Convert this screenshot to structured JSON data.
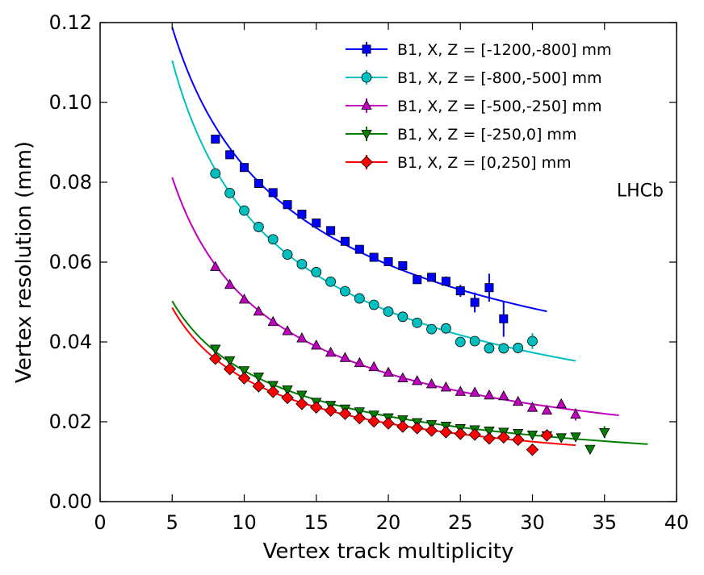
{
  "chart_data": {
    "type": "scatter",
    "title": "",
    "xlabel": "Vertex track multiplicity",
    "ylabel": "Vertex resolution (mm)",
    "xlim": [
      0,
      40
    ],
    "ylim": [
      0.0,
      0.12
    ],
    "x_ticks": [
      0,
      5,
      10,
      15,
      20,
      25,
      30,
      35,
      40
    ],
    "y_ticks": [
      0.0,
      0.02,
      0.04,
      0.06,
      0.08,
      0.1,
      0.12
    ],
    "x_tick_labels": [
      "0",
      "5",
      "10",
      "15",
      "20",
      "25",
      "30",
      "35",
      "40"
    ],
    "y_tick_labels": [
      "0.00",
      "0.02",
      "0.04",
      "0.06",
      "0.08",
      "0.10",
      "0.12"
    ],
    "grid": false,
    "legend_position": "top-right",
    "annotation": "LHCb",
    "series": [
      {
        "name": "B1, X, Z = [-1200,-800] mm",
        "color": "#0000ff",
        "marker": "square",
        "fit_x_range": [
          5,
          31
        ],
        "x": [
          8,
          9,
          10,
          11,
          12,
          13,
          14,
          15,
          16,
          17,
          18,
          19,
          20,
          21,
          22,
          23,
          24,
          25,
          26,
          27,
          28
        ],
        "y": [
          0.0908,
          0.0869,
          0.0837,
          0.0797,
          0.0774,
          0.0744,
          0.072,
          0.0698,
          0.0679,
          0.0652,
          0.0632,
          0.0612,
          0.0601,
          0.0591,
          0.0556,
          0.0562,
          0.0552,
          0.0528,
          0.0499,
          0.0536,
          0.0458
        ],
        "yerr": [
          0.001,
          0.0008,
          0.0007,
          0.0007,
          0.0007,
          0.0007,
          0.0007,
          0.0007,
          0.0007,
          0.0007,
          0.0007,
          0.0007,
          0.0007,
          0.0008,
          0.0009,
          0.001,
          0.0012,
          0.0015,
          0.0025,
          0.0035,
          0.0045
        ]
      },
      {
        "name": "B1, X, Z = [-800,-500] mm",
        "color": "#00bfbf",
        "marker": "circle",
        "fit_x_range": [
          5,
          33
        ],
        "x": [
          8,
          9,
          10,
          11,
          12,
          13,
          14,
          15,
          16,
          17,
          18,
          19,
          20,
          21,
          22,
          23,
          24,
          25,
          26,
          27,
          28,
          29,
          30
        ],
        "y": [
          0.0822,
          0.0773,
          0.0729,
          0.0688,
          0.0657,
          0.0619,
          0.0595,
          0.0575,
          0.0551,
          0.0527,
          0.0509,
          0.0493,
          0.0476,
          0.0463,
          0.0448,
          0.0432,
          0.0434,
          0.04,
          0.0402,
          0.0384,
          0.0384,
          0.0385,
          0.0402
        ],
        "yerr": [
          0.0007,
          0.0006,
          0.0005,
          0.0005,
          0.0005,
          0.0005,
          0.0005,
          0.0005,
          0.0005,
          0.0005,
          0.0005,
          0.0005,
          0.0005,
          0.0005,
          0.0005,
          0.0005,
          0.0006,
          0.0006,
          0.0007,
          0.0008,
          0.001,
          0.0013,
          0.002
        ]
      },
      {
        "name": "B1, X, Z = [-500,-250] mm",
        "color": "#bf00bf",
        "marker": "triangle-up",
        "fit_x_range": [
          5,
          36
        ],
        "x": [
          8,
          9,
          10,
          11,
          12,
          13,
          14,
          15,
          16,
          17,
          18,
          19,
          20,
          21,
          22,
          23,
          24,
          25,
          26,
          27,
          28,
          29,
          30,
          31,
          32,
          33
        ],
        "y": [
          0.0588,
          0.0543,
          0.0506,
          0.0476,
          0.045,
          0.0427,
          0.0409,
          0.0391,
          0.0373,
          0.036,
          0.0347,
          0.0337,
          0.0323,
          0.0309,
          0.0302,
          0.0294,
          0.0286,
          0.0275,
          0.0273,
          0.0266,
          0.0264,
          0.025,
          0.0235,
          0.0228,
          0.0244,
          0.0218
        ],
        "yerr": [
          0.0005,
          0.0005,
          0.0004,
          0.0004,
          0.0004,
          0.0004,
          0.0004,
          0.0004,
          0.0004,
          0.0004,
          0.0004,
          0.0004,
          0.0004,
          0.0004,
          0.0004,
          0.0004,
          0.0004,
          0.0004,
          0.0004,
          0.0004,
          0.0004,
          0.0005,
          0.0005,
          0.0006,
          0.001,
          0.0015
        ]
      },
      {
        "name": "B1, X, Z = [-250,0] mm",
        "color": "#007f00",
        "marker": "triangle-down",
        "fit_x_range": [
          5,
          38
        ],
        "x": [
          8,
          9,
          10,
          11,
          12,
          13,
          14,
          15,
          16,
          17,
          18,
          19,
          20,
          21,
          22,
          23,
          24,
          25,
          26,
          27,
          28,
          29,
          30,
          31,
          32,
          33,
          34,
          35
        ],
        "y": [
          0.0383,
          0.0354,
          0.0329,
          0.0313,
          0.0292,
          0.0281,
          0.0268,
          0.025,
          0.0242,
          0.0233,
          0.0226,
          0.0218,
          0.0211,
          0.0206,
          0.0199,
          0.0194,
          0.019,
          0.0184,
          0.0181,
          0.0178,
          0.0175,
          0.0172,
          0.0168,
          0.0166,
          0.0161,
          0.0163,
          0.0132,
          0.0174
        ],
        "yerr": [
          0.0004,
          0.0003,
          0.0003,
          0.0003,
          0.0003,
          0.0003,
          0.0003,
          0.0003,
          0.0003,
          0.0003,
          0.0003,
          0.0003,
          0.0003,
          0.0003,
          0.0003,
          0.0003,
          0.0003,
          0.0003,
          0.0003,
          0.0003,
          0.0003,
          0.0003,
          0.0003,
          0.0003,
          0.0004,
          0.0005,
          0.0005,
          0.0015
        ]
      },
      {
        "name": "B1, X, Z = [0,250] mm",
        "color": "#ff0000",
        "marker": "diamond",
        "fit_x_range": [
          5,
          33
        ],
        "x": [
          8,
          9,
          10,
          11,
          12,
          13,
          14,
          15,
          16,
          17,
          18,
          19,
          20,
          21,
          22,
          23,
          24,
          25,
          26,
          27,
          28,
          29,
          30,
          31
        ],
        "y": [
          0.0358,
          0.0332,
          0.0309,
          0.0289,
          0.0275,
          0.026,
          0.0245,
          0.0236,
          0.0228,
          0.022,
          0.0209,
          0.0201,
          0.0196,
          0.0188,
          0.0184,
          0.0178,
          0.0174,
          0.017,
          0.0168,
          0.0158,
          0.0161,
          0.0155,
          0.013,
          0.0166
        ],
        "yerr": [
          0.0004,
          0.0003,
          0.0003,
          0.0003,
          0.0003,
          0.0003,
          0.0003,
          0.0003,
          0.0003,
          0.0003,
          0.0003,
          0.0003,
          0.0003,
          0.0003,
          0.0003,
          0.0003,
          0.0003,
          0.0003,
          0.0003,
          0.0003,
          0.0003,
          0.0003,
          0.0004,
          0.0005
        ]
      }
    ]
  }
}
